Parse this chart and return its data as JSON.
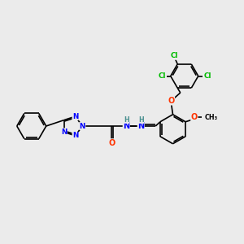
{
  "bg_color": "#ebebeb",
  "atom_colors": {
    "N": "#0000ff",
    "O": "#ff3300",
    "Cl": "#00bb00",
    "C": "#000000",
    "H": "#4a9090"
  },
  "bond_color": "#000000",
  "lw": 1.2,
  "fs": 7.0,
  "fs_small": 5.8
}
